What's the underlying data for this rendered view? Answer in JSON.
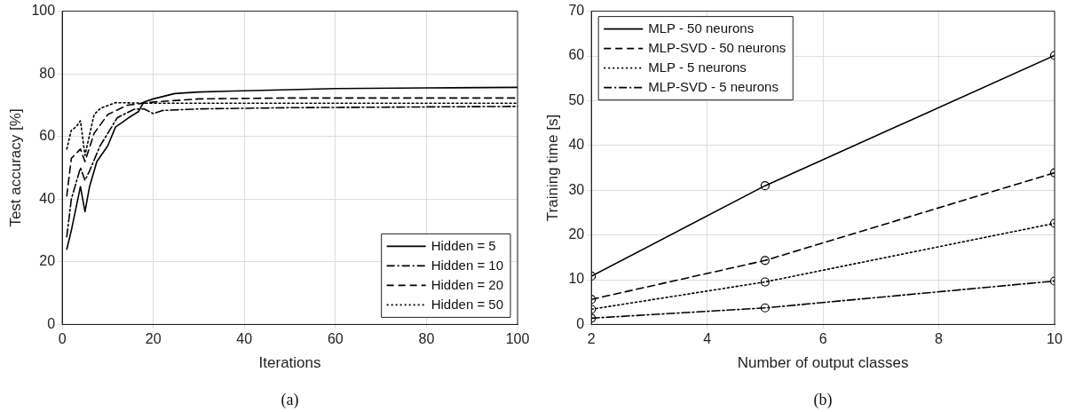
{
  "chart_data": [
    {
      "type": "line",
      "xlabel": "Iterations",
      "ylabel": "Test accuracy [%]",
      "xlim": [
        0,
        100
      ],
      "xticks": [
        0,
        20,
        40,
        60,
        80,
        100
      ],
      "ylim": [
        0,
        100
      ],
      "yticks": [
        0,
        20,
        40,
        60,
        80,
        100
      ],
      "grid": true,
      "legend": "bottom right",
      "marker": "none",
      "annotations": [
        "(a)"
      ],
      "series": [
        {
          "name": "Hidden = 5",
          "color": "#000000",
          "line_style": "solid",
          "x": [
            1,
            2,
            4,
            5,
            6,
            7.6,
            10,
            11.7,
            14.6,
            16.8,
            17.9,
            20,
            24.7,
            30,
            40,
            60,
            80,
            100
          ],
          "values": [
            24,
            30,
            44,
            36,
            44,
            52,
            57,
            63,
            66,
            68,
            71,
            72,
            73.7,
            74.2,
            74.6,
            75.3,
            75.5,
            75.7
          ]
        },
        {
          "name": "Hidden = 10",
          "color": "#000000",
          "line_style": "dashdot",
          "x": [
            1,
            2,
            4,
            5,
            6,
            8.3,
            10,
            12.1,
            15.8,
            18,
            20,
            22,
            30,
            50,
            100
          ],
          "values": [
            28,
            40,
            50,
            46,
            49,
            57,
            61,
            66,
            68.7,
            68.8,
            67.3,
            68.3,
            68.8,
            69.2,
            69.6
          ]
        },
        {
          "name": "Hidden = 20",
          "color": "#000000",
          "line_style": "dashed",
          "x": [
            1,
            2,
            4,
            5,
            7,
            10,
            14.3,
            20,
            30,
            50,
            100
          ],
          "values": [
            41,
            53,
            56,
            52,
            61,
            67,
            70,
            71,
            72,
            72.3,
            72.3
          ]
        },
        {
          "name": "Hidden = 50",
          "color": "#000000",
          "line_style": "dotted",
          "x": [
            1,
            2,
            3,
            4,
            5,
            7,
            8.4,
            11.7,
            20,
            50,
            100
          ],
          "values": [
            56,
            62,
            63,
            65,
            54,
            67,
            69,
            70.8,
            70.6,
            70.6,
            70.6
          ]
        }
      ]
    },
    {
      "type": "line",
      "xlabel": "Number of output classes",
      "ylabel": "Training time [s]",
      "x": [
        2,
        5,
        10
      ],
      "xlim": [
        2,
        10
      ],
      "xticks": [
        2,
        4,
        6,
        8,
        10
      ],
      "ylim": [
        0,
        70
      ],
      "yticks": [
        0,
        10,
        20,
        30,
        40,
        50,
        60,
        70
      ],
      "grid": true,
      "legend": "top left",
      "marker": "circle",
      "annotations": [
        "(b)"
      ],
      "series": [
        {
          "name": "MLP - 50 neurons",
          "color": "#000000",
          "line_style": "solid",
          "values": [
            10.8,
            31,
            60.1
          ]
        },
        {
          "name": "MLP-SVD - 50 neurons",
          "color": "#000000",
          "line_style": "dashed",
          "values": [
            5.6,
            14.3,
            33.9
          ]
        },
        {
          "name": "MLP - 5 neurons",
          "color": "#000000",
          "line_style": "dotted",
          "values": [
            3.4,
            9.5,
            22.6
          ]
        },
        {
          "name": "MLP-SVD - 5 neurons",
          "color": "#000000",
          "line_style": "dashdot",
          "values": [
            1.4,
            3.7,
            9.7
          ]
        }
      ]
    }
  ]
}
